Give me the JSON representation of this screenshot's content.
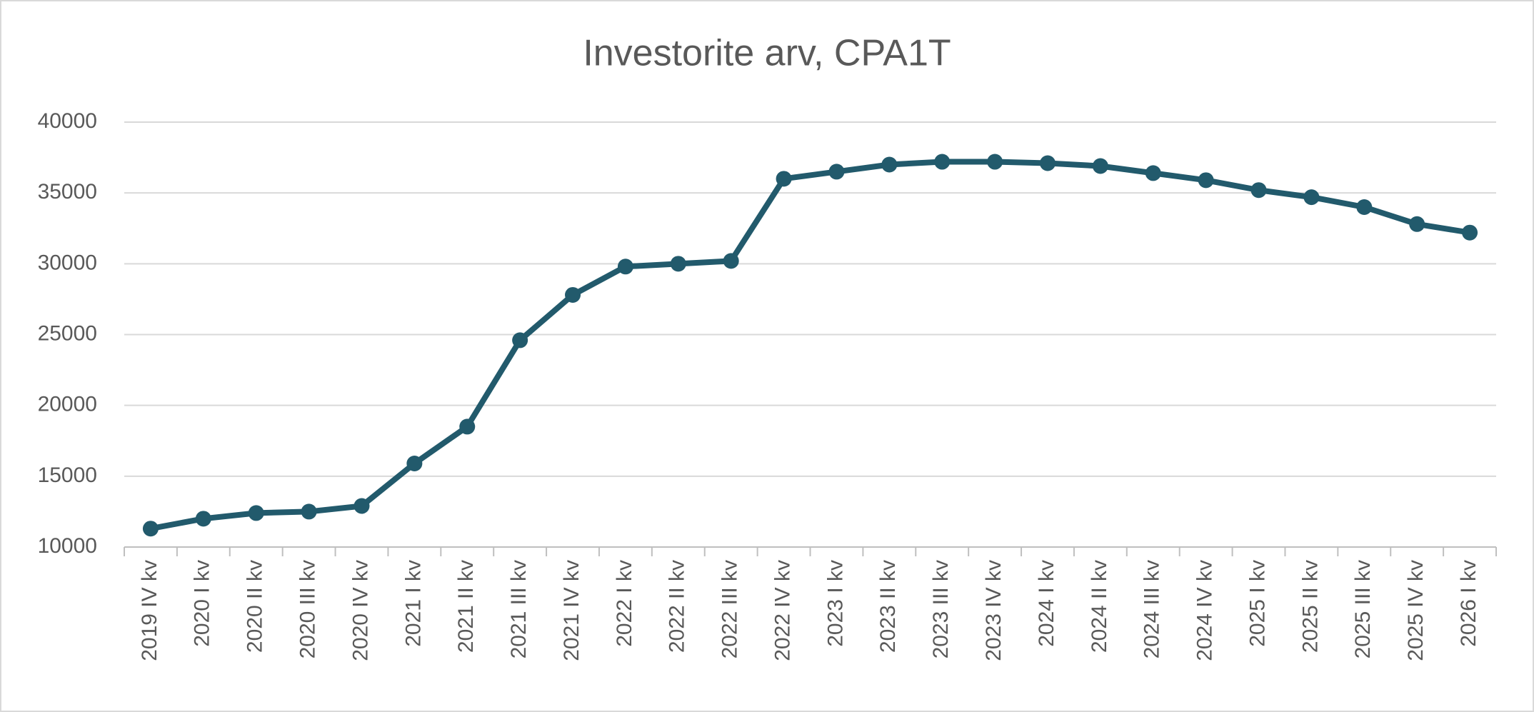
{
  "chart_data": {
    "type": "line",
    "title": "Investorite arv, CPA1T",
    "categories": [
      "2019 IV kv",
      "2020 I kv",
      "2020 II kv",
      "2020 III kv",
      "2020 IV kv",
      "2021 I kv",
      "2021 II kv",
      "2021 III kv",
      "2021 IV kv",
      "2022 I kv",
      "2022 II kv",
      "2022 III kv",
      "2022 IV kv",
      "2023 I kv",
      "2023 II kv",
      "2023 III kv",
      "2023 IV kv",
      "2024 I kv",
      "2024 II kv",
      "2024 III kv",
      "2024 IV kv",
      "2025 I kv",
      "2025 II kv",
      "2025 III kv",
      "2025 IV kv",
      "2026 I kv"
    ],
    "series": [
      {
        "name": "Investorite arv",
        "color": "#225a6c",
        "values": [
          11300,
          12000,
          12400,
          12500,
          12900,
          15900,
          18500,
          24600,
          27800,
          29800,
          30000,
          30200,
          36000,
          36500,
          37000,
          37200,
          37200,
          37100,
          36900,
          36400,
          35900,
          35200,
          34700,
          34000,
          32800,
          32200
        ]
      }
    ],
    "ylim": [
      10000,
      40000
    ],
    "yticks": [
      10000,
      15000,
      20000,
      25000,
      30000,
      35000,
      40000
    ],
    "grid": true
  }
}
